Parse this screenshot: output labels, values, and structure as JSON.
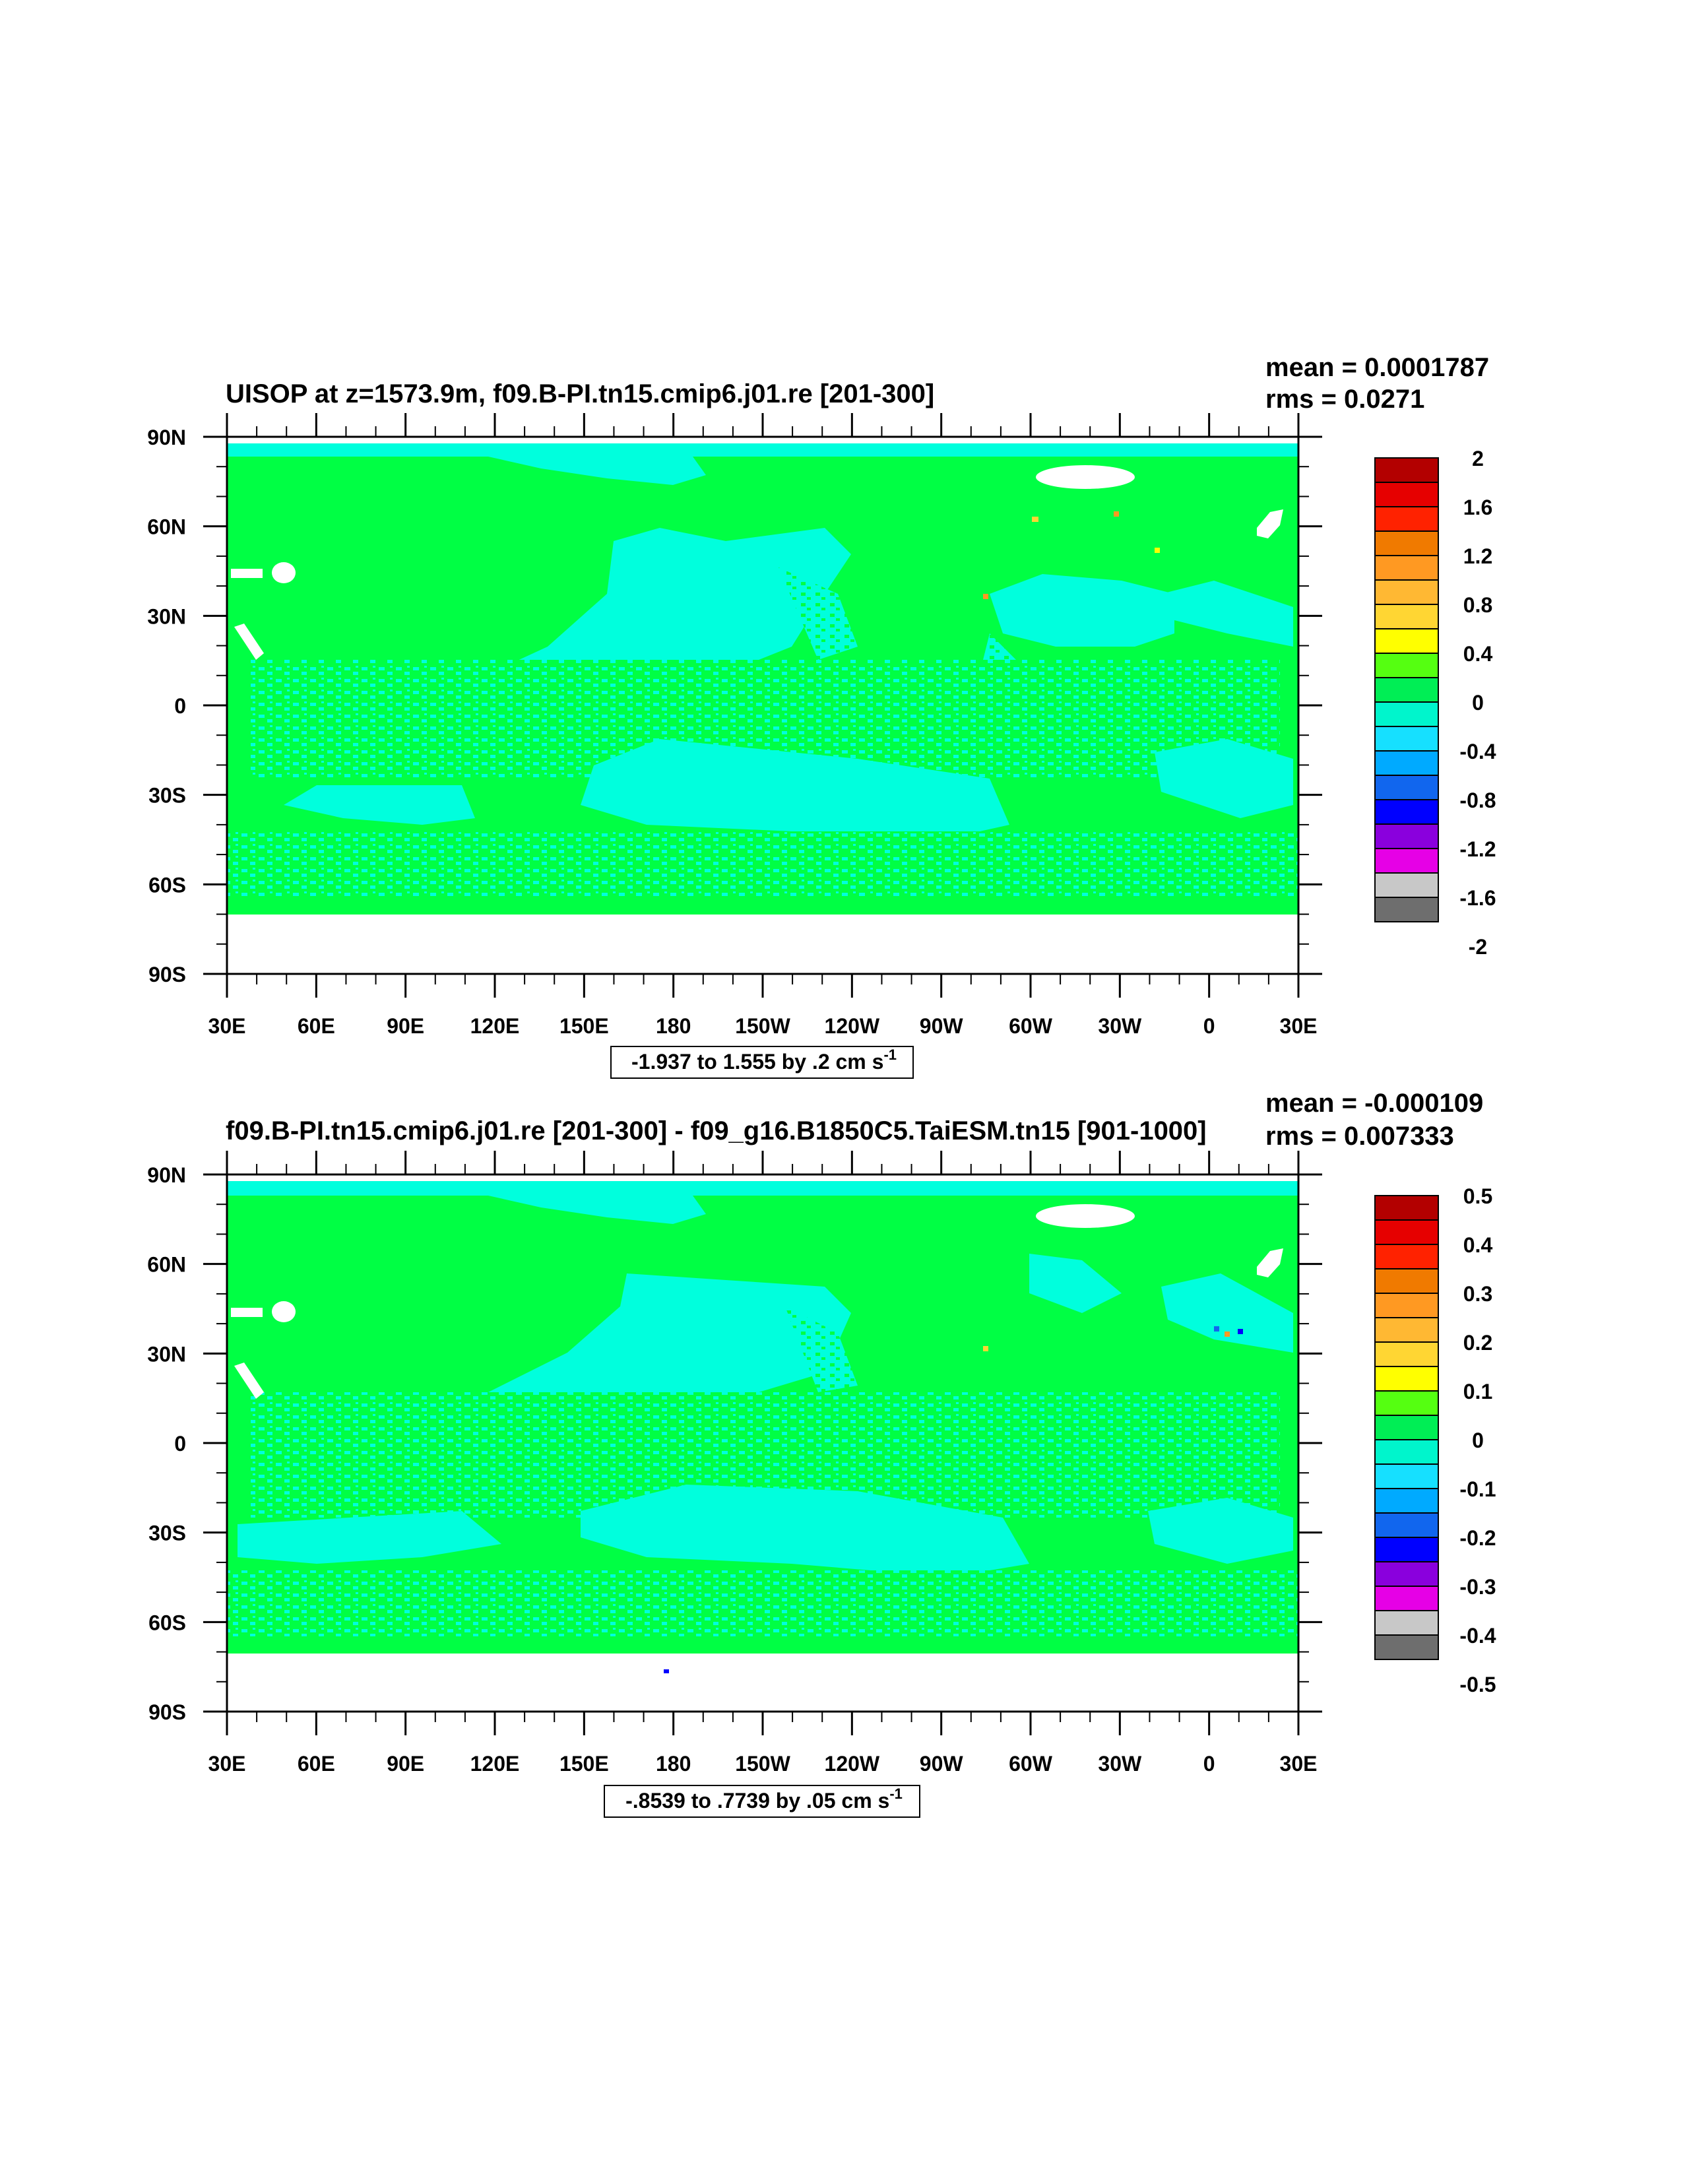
{
  "panels": [
    {
      "title": "UISOP at z=1573.9m, f09.B-PI.tn15.cmip6.j01.re [201-300]",
      "stats": [
        "mean = 0.0001787",
        "rms = 0.0271"
      ],
      "range_main": "-1.937 to 1.555 by .2 cm s",
      "range_sup": "-1",
      "colorbar_labels": [
        "2",
        "1.6",
        "1.2",
        "0.8",
        "0.4",
        "0",
        "-0.4",
        "-0.8",
        "-1.2",
        "-1.6",
        "-2"
      ]
    },
    {
      "title": "f09.B-PI.tn15.cmip6.j01.re [201-300] - f09_g16.B1850C5.TaiESM.tn15 [901-1000]",
      "stats": [
        "mean = -0.000109",
        "rms = 0.007333"
      ],
      "range_main": "-.8539 to .7739 by .05 cm s",
      "range_sup": "-1",
      "colorbar_labels": [
        "0.5",
        "0.4",
        "0.3",
        "0.2",
        "0.1",
        "0",
        "-0.1",
        "-0.2",
        "-0.3",
        "-0.4",
        "-0.5"
      ]
    }
  ],
  "axes": {
    "lat_labels": [
      "90N",
      "60N",
      "30N",
      "0",
      "30S",
      "60S",
      "90S"
    ],
    "lon_labels": [
      "30E",
      "60E",
      "90E",
      "120E",
      "150E",
      "180",
      "150W",
      "120W",
      "90W",
      "60W",
      "30W",
      "0",
      "30E"
    ]
  },
  "colors": {
    "land_green": "#00ff44",
    "ocean_cyan": "#00ffdd",
    "ice_white": "#ffffff",
    "colorbar": [
      "#b30000",
      "#e60000",
      "#ff2200",
      "#f07a00",
      "#ff9922",
      "#ffb833",
      "#ffd633",
      "#ffff00",
      "#55ff11",
      "#00ee55",
      "#00f5cc",
      "#16e0ff",
      "#00aaff",
      "#1166ee",
      "#0000ff",
      "#8a00dd",
      "#e600e6",
      "#c8c8c8",
      "#6e6e6e"
    ]
  },
  "chart_data": [
    {
      "type": "heatmap",
      "title": "UISOP at z=1573.9m, f09.B-PI.tn15.cmip6.j01.re [201-300]",
      "xlabel": "",
      "ylabel": "",
      "x_range": [
        "30E",
        "30E"
      ],
      "y_range": [
        "90S",
        "90N"
      ],
      "mean": 0.0001787,
      "rms": 0.0271,
      "data_min": -1.937,
      "data_max": 1.555,
      "contour_interval": 0.2,
      "units": "cm s-1",
      "levels": [
        -2,
        -1.6,
        -1.2,
        -0.8,
        -0.4,
        0,
        0.4,
        0.8,
        1.2,
        1.6,
        2
      ]
    },
    {
      "type": "heatmap",
      "title": "f09.B-PI.tn15.cmip6.j01.re [201-300] - f09_g16.B1850C5.TaiESM.tn15 [901-1000]",
      "xlabel": "",
      "ylabel": "",
      "x_range": [
        "30E",
        "30E"
      ],
      "y_range": [
        "90S",
        "90N"
      ],
      "mean": -0.000109,
      "rms": 0.007333,
      "data_min": -0.8539,
      "data_max": 0.7739,
      "contour_interval": 0.05,
      "units": "cm s-1",
      "levels": [
        -0.5,
        -0.4,
        -0.3,
        -0.2,
        -0.1,
        0,
        0.1,
        0.2,
        0.3,
        0.4,
        0.5
      ]
    }
  ]
}
